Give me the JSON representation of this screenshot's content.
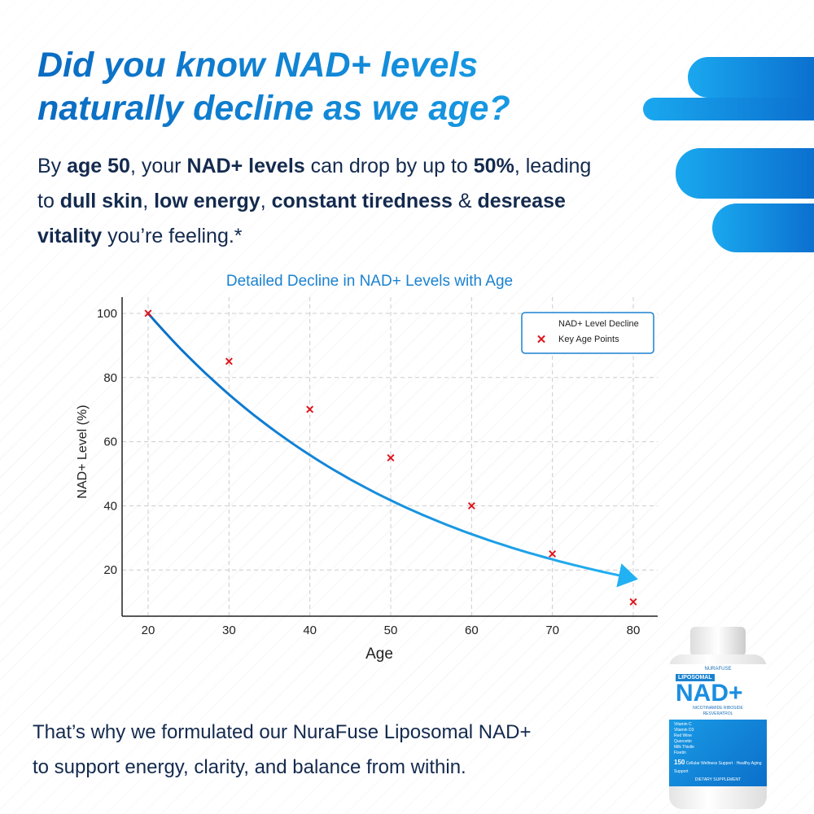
{
  "headline": {
    "line1": "Did you know NAD+ levels",
    "line2": "naturally decline as we age?"
  },
  "intro": {
    "parts": [
      "By ",
      "age 50",
      ", your ",
      "NAD+ levels",
      " can drop by up to ",
      "50%",
      ", leading to ",
      "dull skin",
      ", ",
      "low energy",
      ", ",
      "constant tiredness",
      " & ",
      "desrease vitality",
      " you’re feeling.*"
    ]
  },
  "outro": {
    "line1": "That’s why we formulated our NuraFuse Liposomal NAD+",
    "line2": "to support energy, clarity, and balance from within."
  },
  "bottle": {
    "brand": "NURAFUSE",
    "badge": "LIPOSOMAL",
    "name": "NAD+",
    "sub1": "NICOTINAMIDE RIBOSIDE",
    "sub2": "RESVERATROL",
    "ingredients": [
      "Vitamin C",
      "Vitamin D3",
      "Red Wine",
      "Quercetin",
      "Milk Thistle",
      "Fisetin"
    ],
    "count": "150",
    "claims": "Cellular Wellness Support · Healthy Aging Support",
    "footer": "DIETARY SUPPLEMENT"
  },
  "colors": {
    "accent": "#1a9be6",
    "marker": "#e0141c",
    "text": "#142a4e"
  },
  "chart_data": {
    "type": "line",
    "title": "Detailed Decline in NAD+ Levels with Age",
    "xlabel": "Age",
    "ylabel": "NAD+ Level (%)",
    "xlim": [
      17,
      83
    ],
    "ylim": [
      5.5,
      105
    ],
    "xticks": [
      20,
      30,
      40,
      50,
      60,
      70,
      80
    ],
    "yticks": [
      20,
      40,
      60,
      80,
      100
    ],
    "grid": true,
    "legend_position": "top-right",
    "series": [
      {
        "name": "NAD+ Level Decline",
        "type": "line",
        "x": [
          20,
          30,
          40,
          50,
          60,
          70,
          80
        ],
        "y": [
          100,
          74.7,
          55.8,
          41.7,
          31.1,
          23.3,
          17.4
        ],
        "color": "#1a9be6"
      },
      {
        "name": "Key Age Points",
        "type": "scatter",
        "x": [
          20,
          30,
          40,
          50,
          60,
          70,
          80
        ],
        "y": [
          100,
          85,
          70,
          55,
          40,
          25,
          10
        ],
        "color": "#e0141c"
      }
    ]
  }
}
